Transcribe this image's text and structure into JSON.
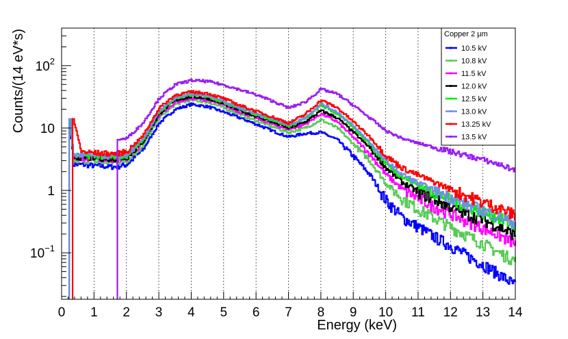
{
  "chart_data": {
    "type": "line",
    "title": "",
    "xlabel": "Energy (keV)",
    "ylabel": "Counts/(14 eV*s)",
    "xlim": [
      0,
      14
    ],
    "ylim": [
      0.018,
      400
    ],
    "yscale": "log",
    "grid": "vertical dotted",
    "legend": {
      "title": "Copper  2 µm",
      "placement": "top-right"
    },
    "x_ticks": [
      "0",
      "1",
      "2",
      "3",
      "4",
      "5",
      "6",
      "7",
      "8",
      "9",
      "10",
      "11",
      "12",
      "13",
      "14"
    ],
    "y_ticks": [
      {
        "value": 0.1,
        "base": "10",
        "exp": "−1"
      },
      {
        "value": 1,
        "base": "1",
        "exp": ""
      },
      {
        "value": 10,
        "base": "10",
        "exp": ""
      },
      {
        "value": 100,
        "base": "10",
        "exp": "2"
      }
    ],
    "x": [
      0.25,
      0.35,
      0.6,
      1.0,
      1.5,
      1.7,
      2.0,
      2.5,
      3.0,
      3.5,
      4.0,
      4.5,
      5.0,
      5.5,
      6.0,
      6.5,
      7.0,
      7.5,
      8.0,
      8.5,
      9.0,
      9.5,
      10.0,
      10.5,
      11.0,
      11.5,
      12.0,
      12.5,
      13.0,
      13.5,
      14.0
    ],
    "series": [
      {
        "name": "10.5 kV",
        "color": "#0000ff",
        "low_cut": 0.24,
        "spike": 14,
        "values": [
          14,
          2.6,
          2.6,
          2.5,
          2.4,
          2.4,
          2.6,
          4.5,
          12,
          20,
          24,
          22,
          18,
          14.5,
          11.5,
          9,
          7.2,
          8.2,
          8.5,
          6.5,
          3.5,
          1.8,
          0.7,
          0.37,
          0.26,
          0.18,
          0.13,
          0.09,
          0.065,
          0.045,
          0.03
        ]
      },
      {
        "name": "10.8 kV",
        "color": "#55cc55",
        "low_cut": 0.24,
        "spike": 14,
        "values": [
          14,
          3.0,
          3.0,
          2.9,
          2.8,
          2.8,
          3.0,
          5.2,
          14.5,
          24,
          28,
          26,
          21,
          16.5,
          13,
          10.5,
          8.5,
          10,
          13.5,
          10,
          5.5,
          3.0,
          1.3,
          0.75,
          0.5,
          0.36,
          0.26,
          0.19,
          0.14,
          0.1,
          0.075
        ]
      },
      {
        "name": "11.5 kV",
        "color": "#ff00ff",
        "low_cut": 0.24,
        "spike": 14,
        "values": [
          14,
          3.3,
          3.3,
          3.2,
          3.1,
          3.1,
          3.3,
          5.8,
          16,
          26,
          30,
          28,
          23,
          18,
          14.5,
          11.5,
          9.5,
          11.5,
          17,
          12.5,
          7,
          3.8,
          1.8,
          1.05,
          0.75,
          0.55,
          0.42,
          0.32,
          0.25,
          0.19,
          0.14
        ]
      },
      {
        "name": "12.0 kV",
        "color": "#000000",
        "low_cut": 0.24,
        "spike": 14,
        "values": [
          14,
          3.4,
          3.4,
          3.3,
          3.2,
          3.2,
          3.4,
          6.0,
          17,
          28,
          32,
          30,
          24.5,
          19,
          15.5,
          12.5,
          10,
          12.5,
          19,
          14.5,
          8.5,
          4.8,
          2.3,
          1.35,
          0.95,
          0.72,
          0.55,
          0.42,
          0.34,
          0.26,
          0.19
        ]
      },
      {
        "name": "12.5 kV",
        "color": "#00ee00",
        "low_cut": 0.24,
        "spike": 14,
        "values": [
          14,
          3.6,
          3.6,
          3.5,
          3.4,
          3.4,
          3.6,
          6.4,
          18,
          30,
          34,
          32,
          26,
          20.5,
          16.5,
          13.5,
          10.8,
          14,
          23,
          17,
          10,
          5.6,
          2.7,
          1.65,
          1.2,
          0.92,
          0.72,
          0.56,
          0.45,
          0.36,
          0.27
        ]
      },
      {
        "name": "13.0 kV",
        "color": "#7090e0",
        "low_cut": 0.24,
        "spike": 14,
        "values": [
          14,
          3.7,
          3.7,
          3.6,
          3.5,
          3.5,
          3.7,
          6.6,
          18.5,
          31,
          35,
          33,
          27,
          21,
          17,
          14,
          11.2,
          14.5,
          24.5,
          18,
          10.5,
          5.9,
          2.9,
          1.8,
          1.3,
          1.0,
          0.78,
          0.6,
          0.48,
          0.38,
          0.3
        ]
      },
      {
        "name": "13.25 kV",
        "color": "#ff0000",
        "low_cut": 0.34,
        "spike": 14,
        "values": [
          14,
          14,
          4.2,
          4.0,
          3.9,
          3.9,
          4.2,
          7.5,
          21,
          34,
          38,
          36,
          29.5,
          23,
          18.5,
          15,
          12,
          16.5,
          28,
          21,
          12.5,
          7.2,
          3.6,
          2.3,
          1.75,
          1.35,
          1.05,
          0.82,
          0.65,
          0.52,
          0.4
        ]
      },
      {
        "name": "13.5 kV",
        "color": "#9a1cf2",
        "low_cut": 1.72,
        "spike": 6.5,
        "values": [
          null,
          null,
          null,
          null,
          null,
          6.5,
          6.8,
          12,
          30,
          50,
          58,
          56,
          49,
          41,
          34,
          27,
          21,
          26,
          42,
          35,
          23,
          14.5,
          9.0,
          6.8,
          5.7,
          4.9,
          4.2,
          3.6,
          3.1,
          2.6,
          2.1
        ]
      }
    ]
  }
}
